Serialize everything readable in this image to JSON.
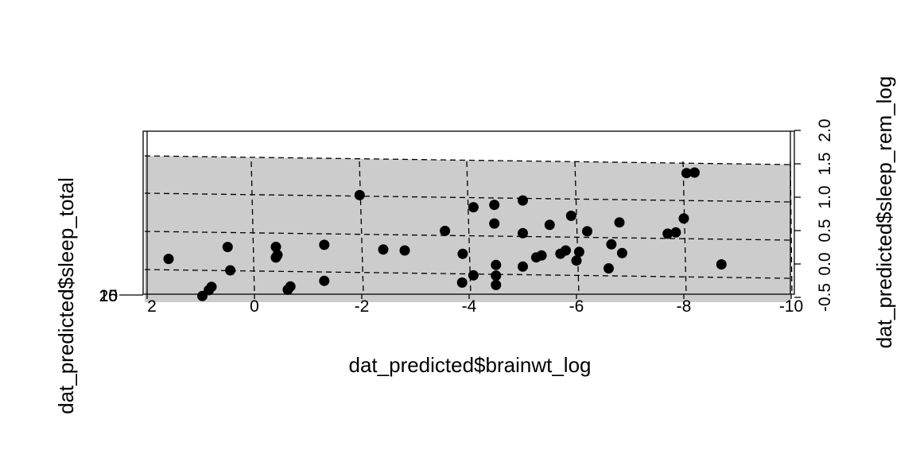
{
  "chart_data": {
    "type": "scatter",
    "subtype": "3d-scatterplot-with-regression-plane",
    "xlabel": "dat_predicted$brainwt_log",
    "ylabel": "dat_predicted$sleep_total",
    "zlabel": "dat_predicted$sleep_rem_log",
    "x_ticks": [
      "2",
      "0",
      "-2",
      "-4",
      "-6",
      "-8",
      "-10"
    ],
    "x_tick_values": [
      2,
      0,
      -2,
      -4,
      -6,
      -8,
      -10
    ],
    "y_ticks": [
      "0",
      "5",
      "10",
      "15",
      "20"
    ],
    "z_ticks": [
      "-0.5",
      "0.0",
      "0.5",
      "1.0",
      "1.5",
      "2.0"
    ],
    "z_tick_values": [
      -0.5,
      0.0,
      0.5,
      1.0,
      1.5,
      2.0
    ],
    "xlim": [
      2,
      -10
    ],
    "zlim": [
      -0.5,
      2.0
    ],
    "grid": false,
    "regression_plane": true,
    "plane_color": "#cccccc",
    "point_color": "#000000",
    "points": [
      {
        "x": 1.6,
        "z": 0.08
      },
      {
        "x": 0.97,
        "z": -0.47
      },
      {
        "x": 0.85,
        "z": -0.38
      },
      {
        "x": 0.8,
        "z": -0.33
      },
      {
        "x": 0.5,
        "z": 0.27
      },
      {
        "x": 0.45,
        "z": -0.08
      },
      {
        "x": -0.4,
        "z": 0.28
      },
      {
        "x": -0.43,
        "z": 0.16
      },
      {
        "x": -0.4,
        "z": 0.12
      },
      {
        "x": -0.62,
        "z": -0.36
      },
      {
        "x": -0.67,
        "z": -0.31
      },
      {
        "x": -1.3,
        "z": 0.32
      },
      {
        "x": -1.3,
        "z": -0.22
      },
      {
        "x": -1.96,
        "z": 1.07
      },
      {
        "x": -2.4,
        "z": 0.26
      },
      {
        "x": -2.8,
        "z": 0.25
      },
      {
        "x": -3.55,
        "z": 0.55
      },
      {
        "x": -3.88,
        "z": 0.21
      },
      {
        "x": -3.87,
        "z": -0.22
      },
      {
        "x": -4.08,
        "z": 0.91
      },
      {
        "x": -4.08,
        "z": -0.11
      },
      {
        "x": -4.47,
        "z": 0.95
      },
      {
        "x": -4.47,
        "z": 0.67
      },
      {
        "x": -4.5,
        "z": 0.05
      },
      {
        "x": -4.5,
        "z": -0.11
      },
      {
        "x": -4.5,
        "z": -0.25
      },
      {
        "x": -5.0,
        "z": 1.02
      },
      {
        "x": -5.0,
        "z": 0.53
      },
      {
        "x": -5.0,
        "z": 0.03
      },
      {
        "x": -5.25,
        "z": 0.17
      },
      {
        "x": -5.35,
        "z": 0.2
      },
      {
        "x": -5.5,
        "z": 0.66
      },
      {
        "x": -5.7,
        "z": 0.23
      },
      {
        "x": -5.8,
        "z": 0.28
      },
      {
        "x": -5.9,
        "z": 0.8
      },
      {
        "x": -6.0,
        "z": 0.13
      },
      {
        "x": -6.05,
        "z": 0.26
      },
      {
        "x": -6.2,
        "z": 0.57
      },
      {
        "x": -6.65,
        "z": 0.38
      },
      {
        "x": -6.6,
        "z": 0.02
      },
      {
        "x": -6.8,
        "z": 0.71
      },
      {
        "x": -6.85,
        "z": 0.25
      },
      {
        "x": -7.7,
        "z": 0.55
      },
      {
        "x": -7.85,
        "z": 0.57
      },
      {
        "x": -8.05,
        "z": 1.46
      },
      {
        "x": -8.0,
        "z": 0.78
      },
      {
        "x": -8.2,
        "z": 1.47
      },
      {
        "x": -8.7,
        "z": 0.1
      }
    ]
  }
}
